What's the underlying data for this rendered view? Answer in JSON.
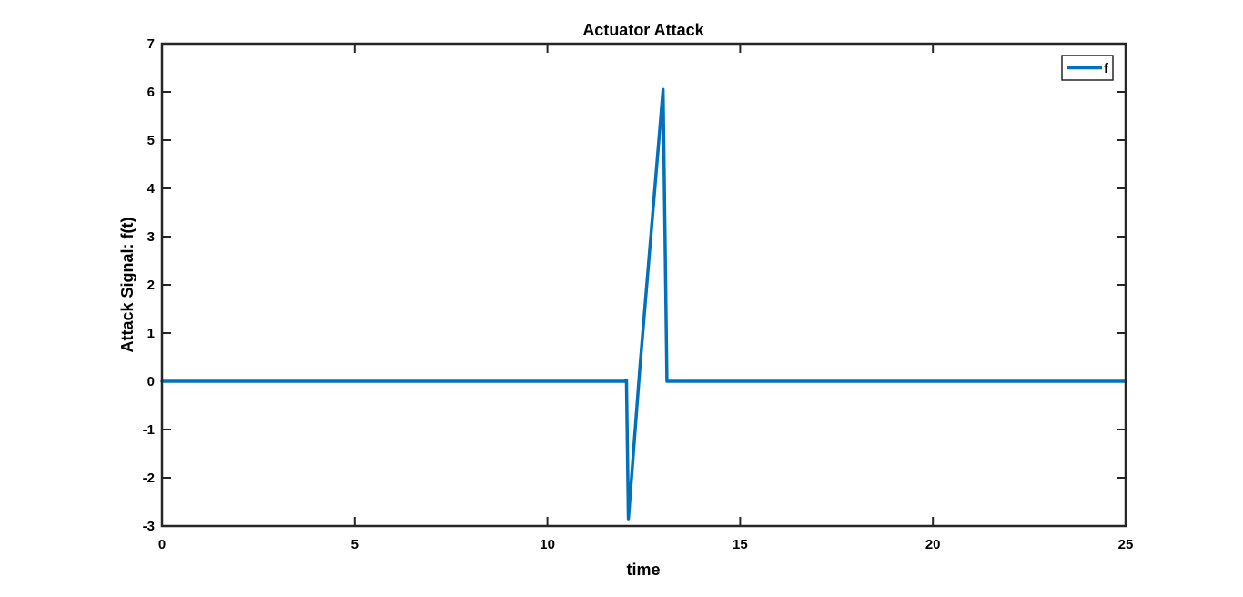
{
  "chart_data": {
    "type": "line",
    "title": "Actuator Attack",
    "xlabel": "time",
    "ylabel": "Attack Signal: f(t)",
    "xlim": [
      0,
      25
    ],
    "ylim": [
      -3,
      7
    ],
    "xticks": [
      0,
      5,
      10,
      15,
      20,
      25
    ],
    "yticks": [
      -3,
      -2,
      -1,
      0,
      1,
      2,
      3,
      4,
      5,
      6,
      7
    ],
    "grid": false,
    "legend_position": "top-right",
    "series": [
      {
        "name": "f",
        "color": "#0072BD",
        "x": [
          0,
          12.0,
          12.05,
          12.1,
          12.4,
          13.0,
          13.1,
          25
        ],
        "y": [
          0,
          0,
          0.02,
          -2.85,
          0.3,
          6.05,
          0,
          0
        ]
      }
    ]
  }
}
